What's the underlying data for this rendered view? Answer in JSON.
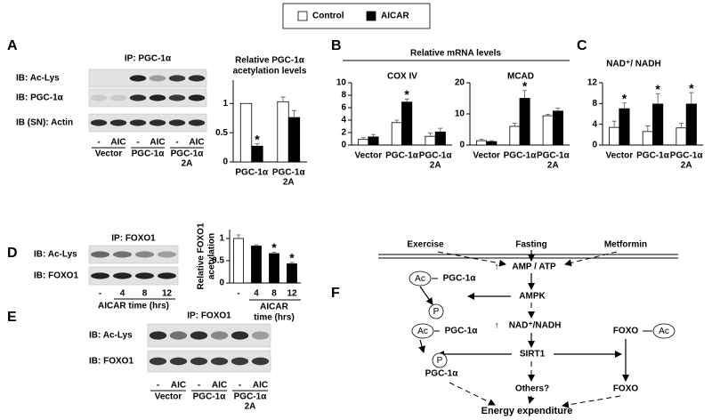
{
  "panel_labels": [
    "A",
    "B",
    "C",
    "D",
    "E",
    "F"
  ],
  "panel_b_header": "Relative mRNA levels",
  "chart_data": [
    {
      "type": "bar",
      "title": [
        "Relative PGC-1α",
        "acetylation levels"
      ],
      "categories": [
        [
          "PGC-1α"
        ],
        [
          "PGC-1α",
          "2A"
        ]
      ],
      "series": [
        {
          "name": "Control",
          "color": "#ffffff",
          "values": [
            1,
            1.03
          ],
          "errors": [
            0,
            0.08
          ],
          "significant": [
            false,
            false
          ]
        },
        {
          "name": "AICAR",
          "color": "#000000",
          "values": [
            0.27,
            0.76
          ],
          "errors": [
            0.04,
            0.12
          ],
          "significant": [
            true,
            false
          ]
        }
      ],
      "ylim": [
        0,
        1.4
      ],
      "yticks": [
        0,
        0.5,
        1
      ],
      "significance_label": "*"
    },
    {
      "type": "bar",
      "title": [
        "COX IV"
      ],
      "categories": [
        [
          "Vector"
        ],
        [
          "PGC-1α"
        ],
        [
          "PGC-1α",
          "2A"
        ]
      ],
      "series": [
        {
          "name": "Control",
          "color": "#ffffff",
          "values": [
            0.9,
            3.6,
            1.4
          ],
          "errors": [
            0.3,
            0.4,
            0.5
          ],
          "significant": [
            false,
            false,
            false
          ]
        },
        {
          "name": "AICAR",
          "color": "#000000",
          "values": [
            1.3,
            6.9,
            2.1
          ],
          "errors": [
            0.4,
            0.5,
            0.6
          ],
          "significant": [
            false,
            true,
            false
          ]
        }
      ],
      "ylim": [
        0,
        10
      ],
      "yticks": [
        0,
        2,
        4,
        6,
        8,
        10
      ],
      "significance_label": "*"
    },
    {
      "type": "bar",
      "title": [
        "MCAD"
      ],
      "categories": [
        [
          "Vector"
        ],
        [
          "PGC-1α"
        ],
        [
          "PGC-1α",
          "2A"
        ]
      ],
      "series": [
        {
          "name": "Control",
          "color": "#ffffff",
          "values": [
            1.4,
            6,
            9.4
          ],
          "errors": [
            0.5,
            1,
            0.5
          ],
          "significant": [
            false,
            false,
            false
          ]
        },
        {
          "name": "AICAR",
          "color": "#000000",
          "values": [
            1.1,
            15,
            10.9
          ],
          "errors": [
            0.3,
            2.5,
            1
          ],
          "significant": [
            false,
            true,
            false
          ]
        }
      ],
      "ylim": [
        0,
        20
      ],
      "yticks": [
        0,
        10,
        20
      ],
      "significance_label": "*"
    },
    {
      "type": "bar",
      "title": [
        "NAD⁺/ NADH"
      ],
      "categories": [
        [
          "Vector"
        ],
        [
          "PGC-1α"
        ],
        [
          "PGC-1α",
          "2A"
        ]
      ],
      "series": [
        {
          "name": "Control",
          "color": "#ffffff",
          "values": [
            3.4,
            2.6,
            3.3
          ],
          "errors": [
            1.2,
            1.1,
            0.9
          ],
          "significant": [
            false,
            false,
            false
          ]
        },
        {
          "name": "AICAR",
          "color": "#000000",
          "values": [
            7,
            7.9,
            7.9
          ],
          "errors": [
            1.1,
            2,
            2.2
          ],
          "significant": [
            true,
            true,
            true
          ]
        }
      ],
      "ylim": [
        0,
        12
      ],
      "yticks": [
        0,
        4,
        8,
        12
      ],
      "significance_label": "*"
    },
    {
      "type": "bar",
      "title": [
        "Relative FOXO1",
        "acetylation"
      ],
      "categories": [
        [
          "-"
        ],
        [
          "4"
        ],
        [
          "8"
        ],
        [
          "12"
        ]
      ],
      "xlabel": [
        "AICAR",
        "time (hrs)"
      ],
      "series": [
        {
          "colors": [
            "#ffffff",
            "#000000",
            "#000000",
            "#000000"
          ],
          "values": [
            1,
            0.83,
            0.66,
            0.43
          ],
          "errors": [
            0.08,
            0.03,
            0.03,
            0.03
          ],
          "significant": [
            false,
            false,
            true,
            true
          ]
        }
      ],
      "ylim": [
        0,
        1.2
      ],
      "yticks": [
        0,
        0.5,
        1
      ],
      "significance_label": "*"
    }
  ],
  "blot_a": {
    "ip": "IP: PGC-1α",
    "rows": [
      "IB: Ac-Lys",
      "IB: PGC-1α",
      "IB (SN): Actin"
    ],
    "lanes": [
      "-",
      "AIC",
      "-",
      "AIC",
      "-",
      "AIC"
    ],
    "groups": [
      [
        "Vector"
      ],
      [
        "PGC-1α"
      ],
      [
        "PGC-1α",
        "2A"
      ]
    ]
  },
  "blot_d": {
    "ip": "IP: FOXO1",
    "rows": [
      "IB: Ac-Lys",
      "IB: FOXO1"
    ],
    "lanes": [
      "-",
      "4",
      "8",
      "12"
    ],
    "caption": "AICAR time (hrs)"
  },
  "blot_e": {
    "ip": "IP: FOXO1",
    "rows": [
      "IB: Ac-Lys",
      "IB: FOXO1"
    ],
    "lanes": [
      "-",
      "AIC",
      "-",
      "AIC",
      "-",
      "AIC"
    ],
    "groups": [
      [
        "Vector"
      ],
      [
        "PGC-1α"
      ],
      [
        "PGC-1α",
        "2A"
      ]
    ]
  },
  "diagram_f": {
    "nodes": [
      "Exercise",
      "Fasting",
      "Metformin",
      "↑",
      "AMP / ATP",
      "AMPK",
      "↑",
      "NAD⁺/NADH",
      "SIRT1",
      "Others?",
      "FOXO",
      "FOXO",
      "PGC-1α",
      "PGC-1α",
      "PGC-1α",
      "Energy expenditure"
    ],
    "modifications": [
      "Ac",
      "P",
      "Ac",
      "P",
      "Ac"
    ]
  }
}
